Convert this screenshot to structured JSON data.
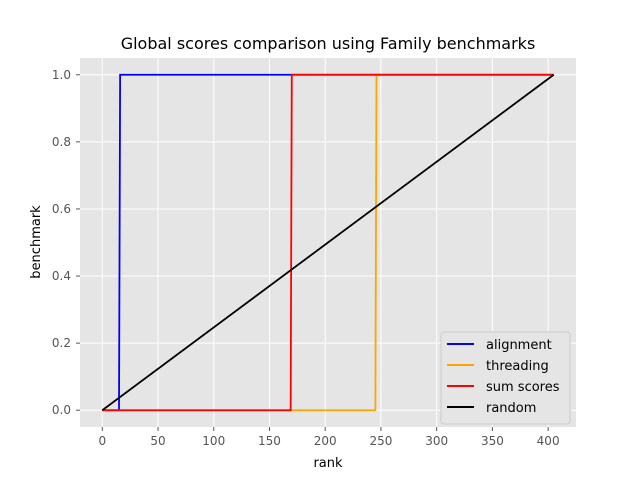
{
  "chart_data": {
    "type": "line",
    "title": "Global scores comparison using Family benchmarks",
    "xlabel": "rank",
    "ylabel": "benchmark",
    "xlim": [
      -20,
      425
    ],
    "ylim": [
      -0.05,
      1.05
    ],
    "xticks": [
      0,
      50,
      100,
      150,
      200,
      250,
      300,
      350,
      400
    ],
    "yticks": [
      0.0,
      0.2,
      0.4,
      0.6,
      0.8,
      1.0
    ],
    "grid": true,
    "legend_position": "lower-right",
    "series": [
      {
        "name": "alignment",
        "color": "#0000ff",
        "x": [
          0,
          15,
          16,
          405
        ],
        "y": [
          0,
          0,
          1,
          1
        ]
      },
      {
        "name": "threading",
        "color": "#ffa500",
        "x": [
          0,
          245,
          246,
          405
        ],
        "y": [
          0,
          0,
          1,
          1
        ]
      },
      {
        "name": "sum scores",
        "color": "#ff0000",
        "x": [
          0,
          169,
          170,
          405
        ],
        "y": [
          0,
          0,
          1,
          1
        ]
      },
      {
        "name": "random",
        "color": "#000000",
        "x": [
          0,
          405
        ],
        "y": [
          0,
          1
        ]
      }
    ]
  }
}
